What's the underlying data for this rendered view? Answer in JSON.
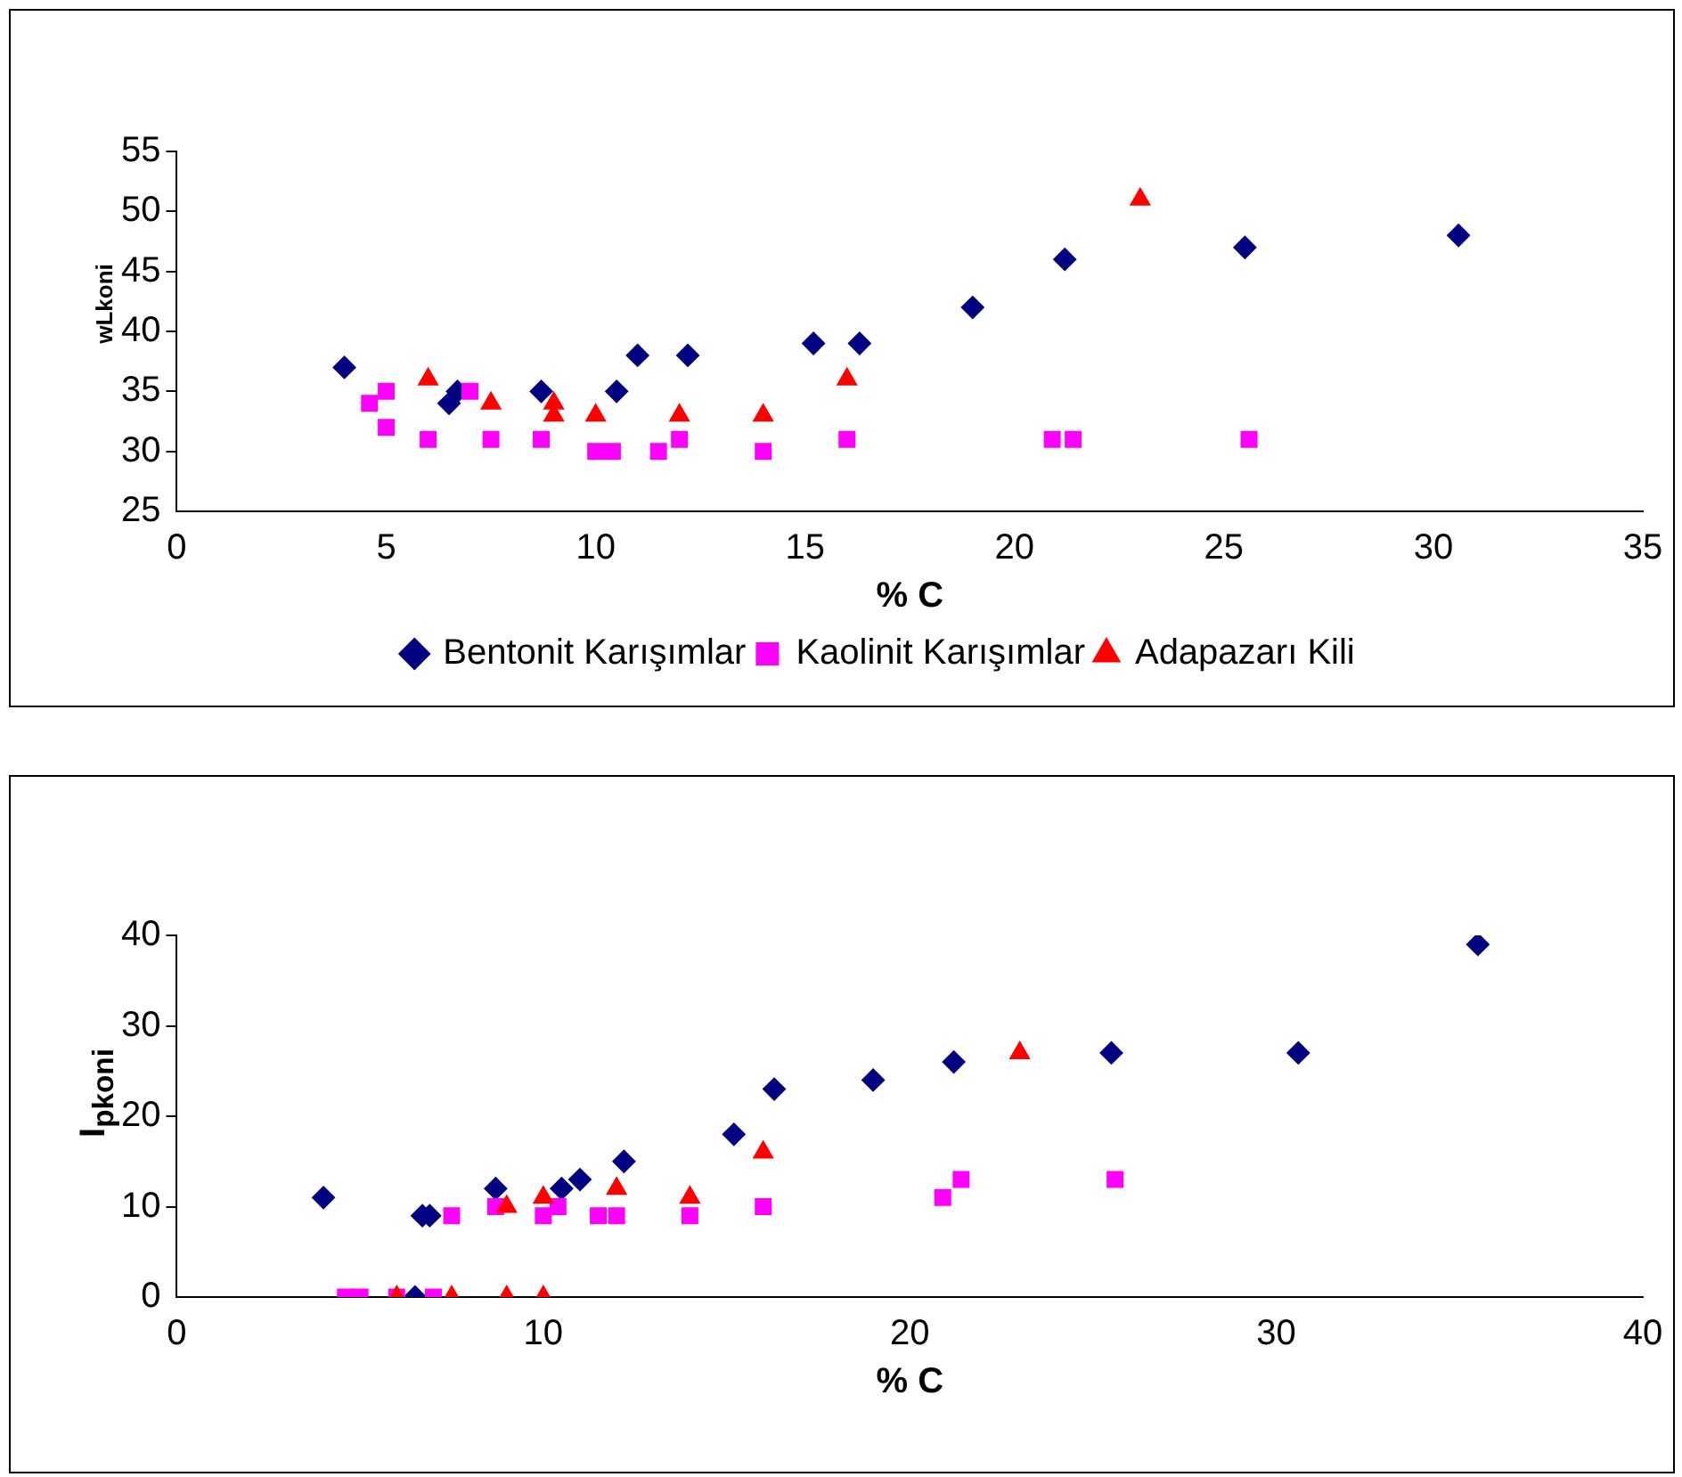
{
  "chart_data": [
    {
      "type": "scatter",
      "xlabel": "% C",
      "ylabel": "wLkoni",
      "xlim": [
        0,
        35
      ],
      "xticks": [
        0,
        5,
        10,
        15,
        20,
        25,
        30,
        35
      ],
      "ylim": [
        25,
        55
      ],
      "yticks": [
        25,
        30,
        35,
        40,
        45,
        50,
        55
      ],
      "grid": false,
      "legend": "bottom",
      "series": [
        {
          "name": "Bentonit Karışımlar",
          "color": "#000080",
          "marker": "diamond",
          "x": [
            4,
            6.5,
            6.7,
            8.7,
            10.5,
            11,
            12.2,
            15.2,
            16.3,
            19,
            21.2,
            25.5,
            30.6
          ],
          "values": [
            37,
            34,
            35,
            35,
            35,
            38,
            38,
            39,
            39,
            42,
            46,
            47,
            48
          ]
        },
        {
          "name": "Kaolinit Karışımlar",
          "color": "#ff00ff",
          "marker": "square",
          "x": [
            4.6,
            5,
            5,
            6,
            7,
            7.5,
            8.7,
            10,
            10.4,
            11.5,
            12,
            14,
            16,
            20.9,
            21.4,
            25.6
          ],
          "values": [
            34,
            35,
            32,
            31,
            35,
            31,
            31,
            30,
            30,
            30,
            31,
            30,
            31,
            31,
            31,
            31
          ]
        },
        {
          "name": "Adapazarı Kili",
          "color": "#ff0000",
          "marker": "triangle",
          "x": [
            6,
            7.5,
            9,
            9,
            10,
            12,
            14,
            16,
            23
          ],
          "values": [
            36,
            34,
            34,
            33,
            33,
            33,
            33,
            36,
            51
          ]
        }
      ]
    },
    {
      "type": "scatter",
      "xlabel": "% C",
      "ylabel": "I$_{pkoni}$",
      "xlim": [
        0,
        40
      ],
      "xticks": [
        0,
        10,
        20,
        30,
        40
      ],
      "ylim": [
        0,
        40
      ],
      "yticks": [
        0,
        10,
        20,
        30,
        40
      ],
      "grid": false,
      "series": [
        {
          "color": "#000080",
          "marker": "diamond",
          "x": [
            4,
            6.5,
            6.7,
            6.9,
            8.7,
            10.5,
            11,
            12.2,
            15.2,
            16.3,
            19,
            21.2,
            25.5,
            30.6,
            35.5
          ],
          "values": [
            11,
            0,
            9,
            9,
            12,
            12,
            13,
            15,
            18,
            23,
            24,
            26,
            27,
            27,
            39
          ]
        },
        {
          "color": "#ff00ff",
          "marker": "square",
          "x": [
            4.6,
            5,
            6,
            7,
            7.5,
            8.7,
            10,
            10.4,
            11.5,
            12,
            14,
            16,
            20.9,
            21.4,
            25.6
          ],
          "values": [
            0,
            0,
            0,
            0,
            9,
            10,
            9,
            10,
            9,
            9,
            9,
            10,
            11,
            13,
            13
          ]
        },
        {
          "color": "#ff0000",
          "marker": "triangle",
          "x": [
            6,
            7.5,
            9,
            10,
            9,
            10,
            12,
            14,
            16,
            23
          ],
          "values": [
            0,
            0,
            0,
            0,
            10,
            11,
            12,
            11,
            16,
            27
          ]
        }
      ]
    }
  ]
}
